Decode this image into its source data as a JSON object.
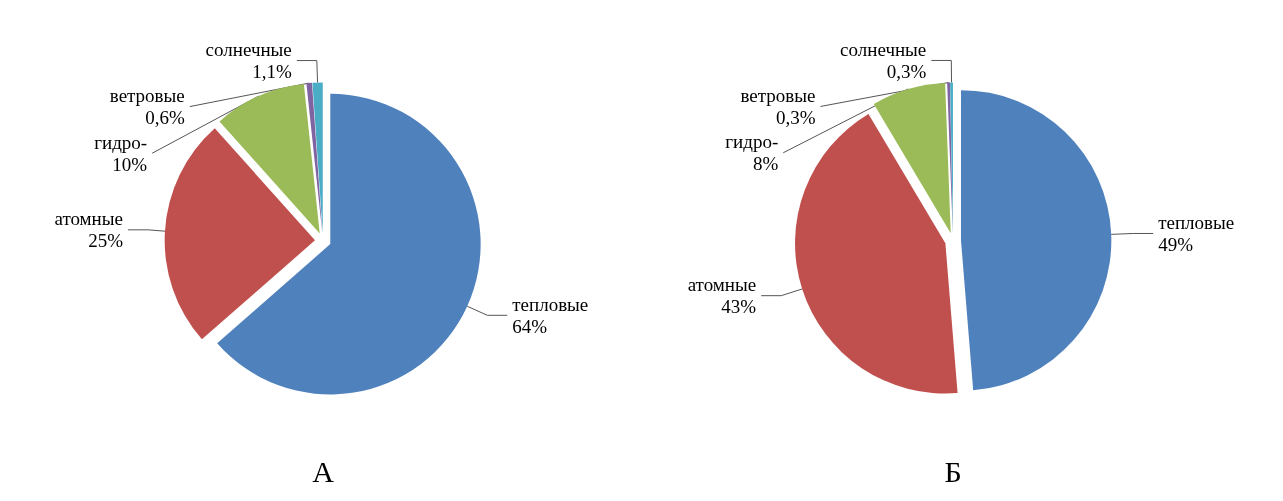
{
  "chart_data": [
    {
      "type": "pie",
      "title": "А",
      "categories": [
        "тепловые",
        "атомные",
        "гидро-",
        "ветровые",
        "солнечные"
      ],
      "values": [
        64,
        25,
        10,
        0.6,
        1.1
      ],
      "value_labels": [
        "64%",
        "25%",
        "10%",
        "0,6%",
        "1,1%"
      ],
      "colors": [
        "#4f81bd",
        "#c0504d",
        "#9bbb59",
        "#8064a2",
        "#4bacc6"
      ]
    },
    {
      "type": "pie",
      "title": "Б",
      "categories": [
        "тепловые",
        "атомные",
        "гидро-",
        "ветровые",
        "солнечные"
      ],
      "values": [
        49,
        43,
        8,
        0.3,
        0.3
      ],
      "value_labels": [
        "49%",
        "43%",
        "8%",
        "0,3%",
        "0,3%"
      ],
      "colors": [
        "#4f81bd",
        "#c0504d",
        "#9bbb59",
        "#8064a2",
        "#4bacc6"
      ]
    }
  ]
}
